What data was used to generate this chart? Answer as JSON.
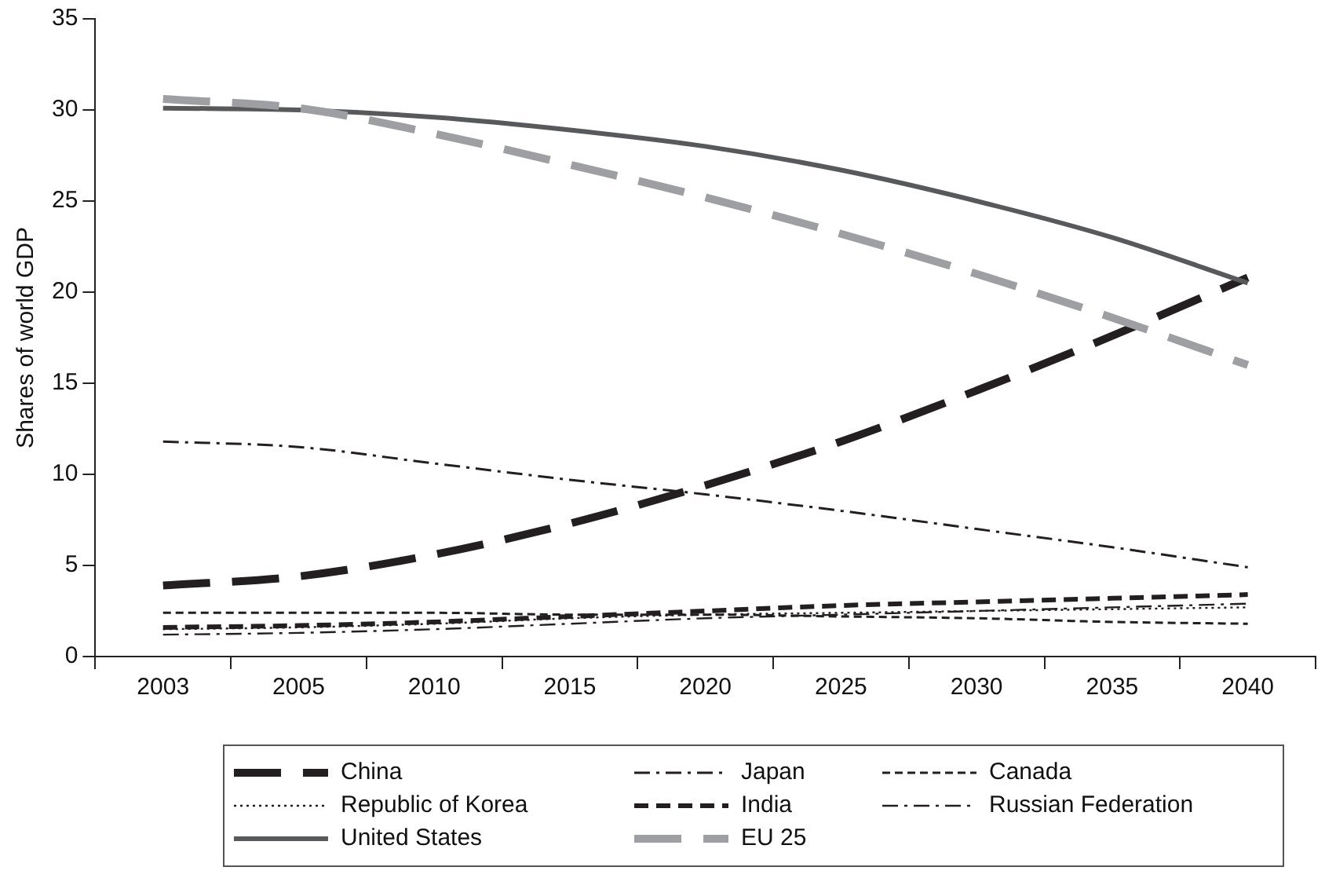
{
  "chart_data": {
    "type": "line",
    "ylabel": "Shares of world GDP",
    "categories": [
      "2003",
      "2005",
      "2010",
      "2015",
      "2020",
      "2025",
      "2030",
      "2035",
      "2040"
    ],
    "ylim": [
      0,
      35
    ],
    "yticks": [
      0,
      5,
      10,
      15,
      20,
      25,
      30,
      35
    ],
    "grid": false,
    "legend": "bottom",
    "marker": "none",
    "series": [
      {
        "name": "China",
        "color": "#231f20",
        "line_style": "dashed",
        "values": [
          3.9,
          4.4,
          5.6,
          7.3,
          9.4,
          11.8,
          14.6,
          17.6,
          20.8
        ]
      },
      {
        "name": "Japan",
        "color": "#231f20",
        "line_style": "dashdot",
        "values": [
          11.8,
          11.5,
          10.6,
          9.7,
          8.9,
          8.0,
          7.0,
          6.0,
          4.9
        ]
      },
      {
        "name": "Canada",
        "color": "#231f20",
        "line_style": "dashed",
        "values": [
          2.4,
          2.4,
          2.4,
          2.3,
          2.3,
          2.2,
          2.1,
          1.9,
          1.8
        ]
      },
      {
        "name": "Republic of Korea",
        "color": "#231f20",
        "line_style": "dotted",
        "values": [
          1.5,
          1.6,
          1.8,
          2.1,
          2.3,
          2.4,
          2.5,
          2.6,
          2.7
        ]
      },
      {
        "name": "India",
        "color": "#231f20",
        "line_style": "dashed",
        "values": [
          1.6,
          1.7,
          1.9,
          2.2,
          2.5,
          2.8,
          3.0,
          3.2,
          3.4
        ]
      },
      {
        "name": "Russian Federation",
        "color": "#231f20",
        "line_style": "dashdot",
        "values": [
          1.2,
          1.3,
          1.5,
          1.8,
          2.1,
          2.3,
          2.5,
          2.7,
          2.9
        ]
      },
      {
        "name": "United States",
        "color": "#58595b",
        "line_style": "solid",
        "values": [
          30.1,
          30.0,
          29.6,
          28.9,
          28.0,
          26.7,
          25.0,
          23.0,
          20.5
        ]
      },
      {
        "name": "EU 25",
        "color": "#9d9fa2",
        "line_style": "dashed",
        "values": [
          30.6,
          30.1,
          28.7,
          27.0,
          25.2,
          23.2,
          21.0,
          18.6,
          16.0
        ]
      }
    ]
  }
}
